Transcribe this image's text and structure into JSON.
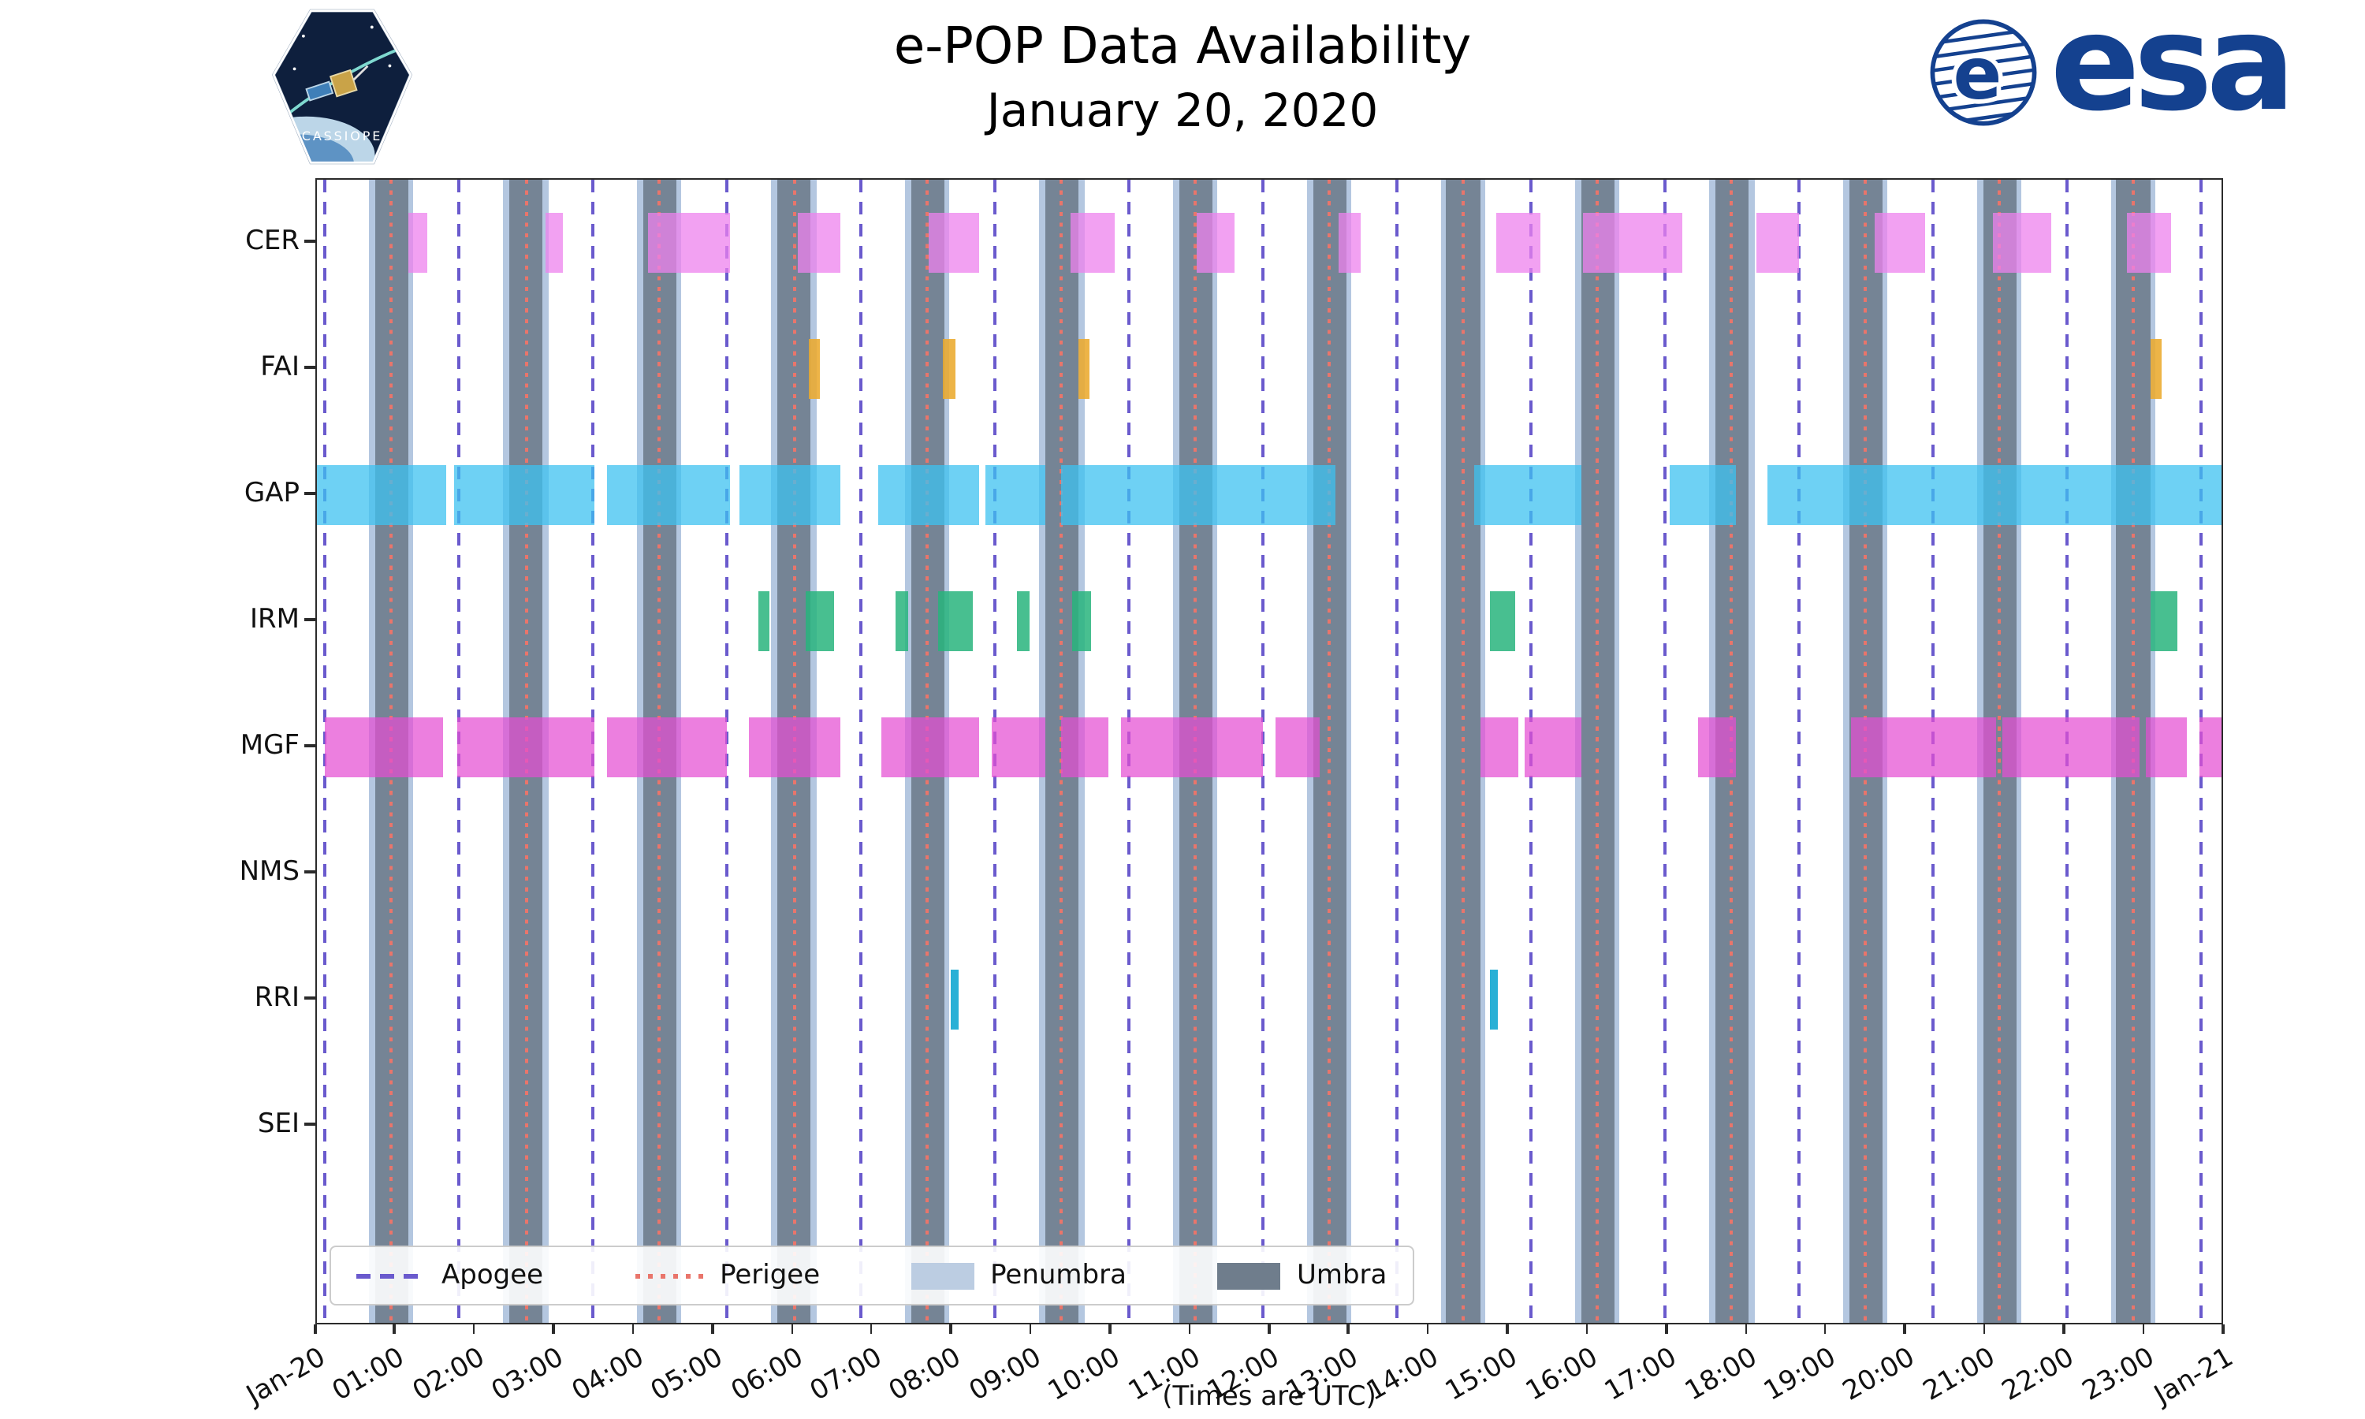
{
  "header": {
    "title": "e-POP Data Availability",
    "subtitle": "January 20, 2020",
    "mission_patch_text": "CASSIOPE",
    "esa_wordmark": "esa",
    "esa_emblem_letter": "e",
    "esa_blue": "#14418F"
  },
  "axis": {
    "xlabel": "(Times are UTC)",
    "xtick_labels": [
      "Jan-20",
      "01:00",
      "02:00",
      "03:00",
      "04:00",
      "05:00",
      "06:00",
      "07:00",
      "08:00",
      "09:00",
      "10:00",
      "11:00",
      "12:00",
      "13:00",
      "14:00",
      "15:00",
      "16:00",
      "17:00",
      "18:00",
      "19:00",
      "20:00",
      "21:00",
      "22:00",
      "23:00",
      "Jan-21"
    ],
    "ytick_labels": [
      "CER",
      "FAI",
      "GAP",
      "IRM",
      "MGF",
      "NMS",
      "RRI",
      "SEI"
    ]
  },
  "legend": {
    "items": [
      {
        "label": "Apogee",
        "style": "dashed-line",
        "color": "#6A5ACD"
      },
      {
        "label": "Perigee",
        "style": "dotted-line",
        "color": "#E9756B"
      },
      {
        "label": "Penumbra",
        "style": "patch",
        "color": "#BCCDE2"
      },
      {
        "label": "Umbra",
        "style": "patch",
        "color": "#6F7D8C"
      }
    ]
  },
  "chart_data": {
    "type": "gantt",
    "title": "e-POP Data Availability",
    "subtitle": "January 20, 2020",
    "xlabel": "(Times are UTC)",
    "x_axis": {
      "start": "Jan-20 00:00",
      "end": "Jan-21 00:00",
      "tick_interval_hours": 1,
      "range_hours": [
        0,
        24
      ]
    },
    "rows": [
      "CER",
      "FAI",
      "GAP",
      "IRM",
      "MGF",
      "NMS",
      "RRI",
      "SEI"
    ],
    "row_colors": {
      "CER": "rgba(238,130,238,0.75)",
      "FAI": "rgba(235,170,45,0.88)",
      "GAP": "rgba(62,193,240,0.75)",
      "IRM": "rgba(40,180,125,0.85)",
      "MGF": "rgba(228,78,210,0.72)",
      "NMS": "rgba(150,150,150,0.8)",
      "RRI": "rgba(30,172,212,0.95)",
      "SEI": "rgba(150,150,150,0.8)"
    },
    "availability_intervals_hours": {
      "CER": [
        [
          1.15,
          1.39
        ],
        [
          2.88,
          3.09
        ],
        [
          4.17,
          5.2
        ],
        [
          6.05,
          6.59
        ],
        [
          7.7,
          8.33
        ],
        [
          9.48,
          10.04
        ],
        [
          11.07,
          11.54
        ],
        [
          12.85,
          13.13
        ],
        [
          14.84,
          15.39
        ],
        [
          15.93,
          17.18
        ],
        [
          18.11,
          18.64
        ],
        [
          19.6,
          20.23
        ],
        [
          21.08,
          21.82
        ],
        [
          22.77,
          23.32
        ]
      ],
      "FAI": [
        [
          6.19,
          6.33
        ],
        [
          7.87,
          8.03
        ],
        [
          9.58,
          9.72
        ],
        [
          23.07,
          23.21
        ]
      ],
      "GAP": [
        [
          0.0,
          1.63
        ],
        [
          1.73,
          3.49
        ],
        [
          3.65,
          5.2
        ],
        [
          5.32,
          6.59
        ],
        [
          7.06,
          8.33
        ],
        [
          8.41,
          9.16
        ],
        [
          9.36,
          12.81
        ],
        [
          14.56,
          15.91
        ],
        [
          17.02,
          17.85
        ],
        [
          18.25,
          24.0
        ]
      ],
      "IRM": [
        [
          5.55,
          5.69
        ],
        [
          6.15,
          6.51
        ],
        [
          7.28,
          7.44
        ],
        [
          7.81,
          8.25
        ],
        [
          8.81,
          8.96
        ],
        [
          9.5,
          9.74
        ],
        [
          14.76,
          15.07
        ],
        [
          23.07,
          23.41
        ]
      ],
      "MGF": [
        [
          0.1,
          1.59
        ],
        [
          1.77,
          3.49
        ],
        [
          3.65,
          5.16
        ],
        [
          5.43,
          6.59
        ],
        [
          7.1,
          8.33
        ],
        [
          8.49,
          9.16
        ],
        [
          9.36,
          9.96
        ],
        [
          10.12,
          11.9
        ],
        [
          12.06,
          12.61
        ],
        [
          14.64,
          15.11
        ],
        [
          15.19,
          15.91
        ],
        [
          17.37,
          17.85
        ],
        [
          19.3,
          21.12
        ],
        [
          21.2,
          22.93
        ],
        [
          23.01,
          23.52
        ],
        [
          23.68,
          24.0
        ]
      ],
      "NMS": [],
      "RRI": [
        [
          7.97,
          8.07
        ],
        [
          14.76,
          14.86
        ]
      ],
      "SEI": []
    },
    "orbit_events": {
      "apogee_hours": [
        0.1,
        1.79,
        3.47,
        5.16,
        6.84,
        8.53,
        10.22,
        11.9,
        13.59,
        15.27,
        16.96,
        18.65,
        20.33,
        22.02,
        23.7
      ],
      "perigee_hours": [
        0.94,
        2.63,
        4.31,
        6.0,
        7.68,
        9.37,
        11.05,
        12.74,
        14.42,
        16.11,
        17.8,
        19.48,
        21.17,
        22.85
      ],
      "umbra_intervals_hours": [
        [
          0.73,
          1.15
        ],
        [
          2.42,
          2.84
        ],
        [
          4.1,
          4.52
        ],
        [
          5.79,
          6.21
        ],
        [
          7.47,
          7.89
        ],
        [
          9.16,
          9.58
        ],
        [
          10.84,
          11.26
        ],
        [
          12.53,
          12.95
        ],
        [
          14.21,
          14.63
        ],
        [
          15.9,
          16.32
        ],
        [
          17.59,
          18.01
        ],
        [
          19.27,
          19.69
        ],
        [
          20.96,
          21.38
        ],
        [
          22.64,
          23.06
        ]
      ],
      "penumbra_pad_hours": 0.07
    },
    "legend_entries": [
      "Apogee",
      "Perigee",
      "Penumbra",
      "Umbra"
    ],
    "grid": false,
    "legend_position": "lower-left-inside"
  }
}
